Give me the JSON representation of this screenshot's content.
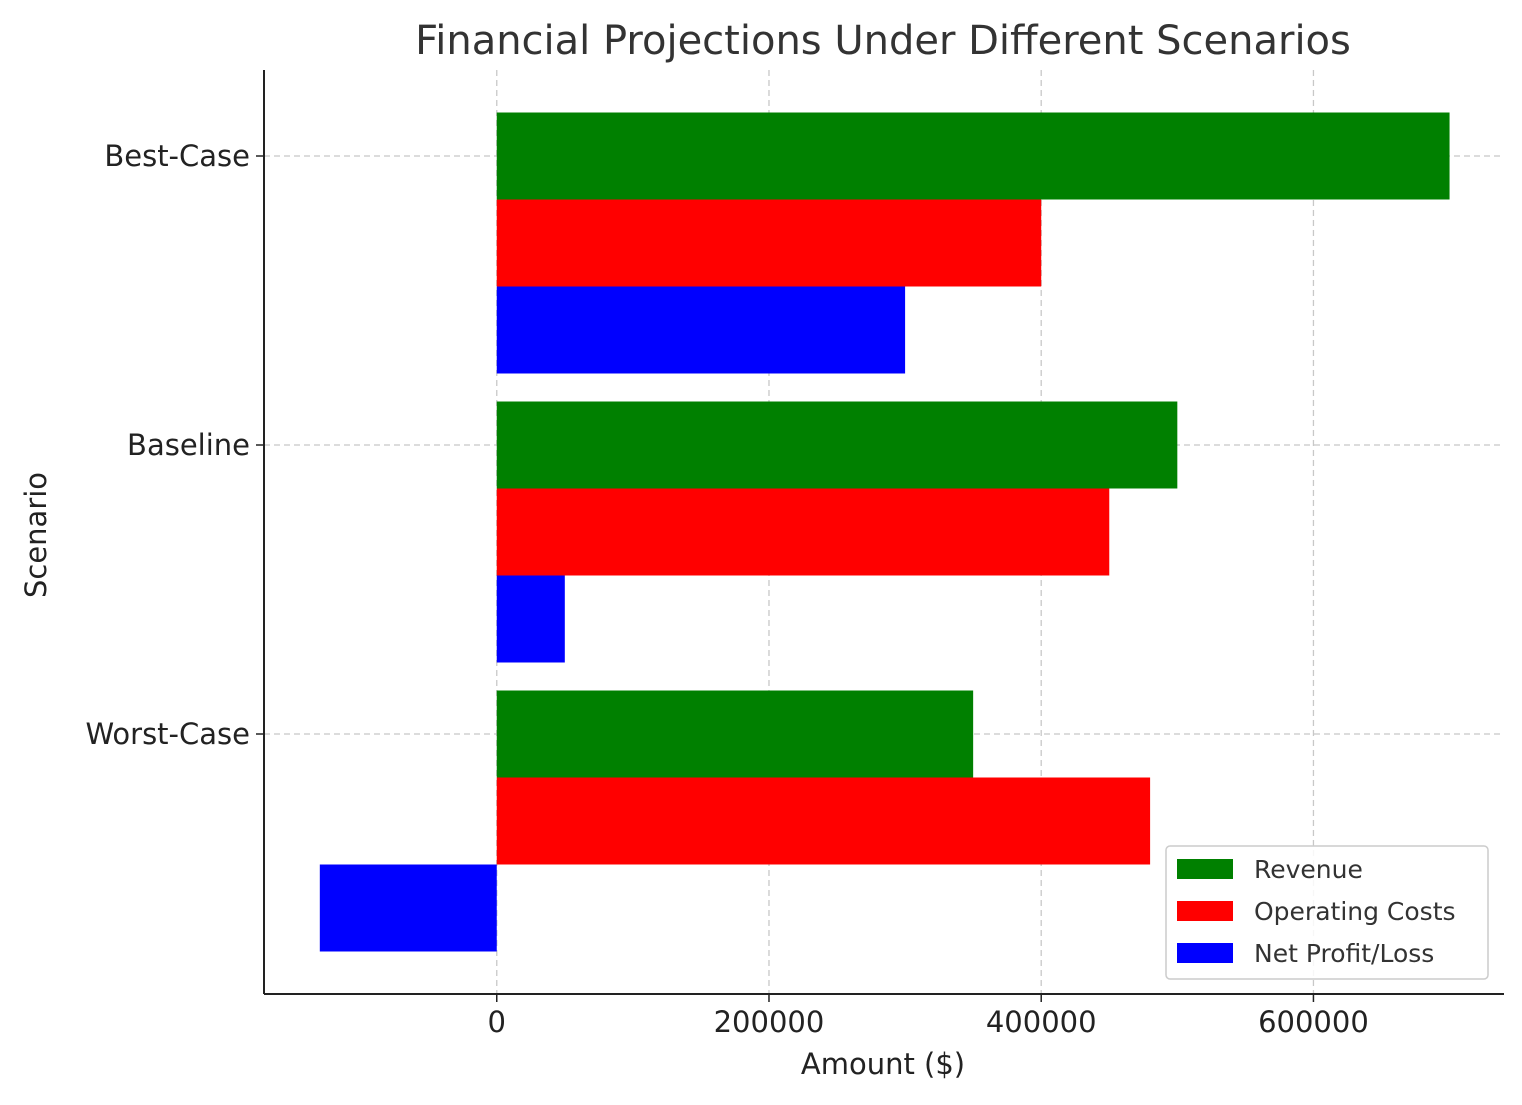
{
  "chart_data": {
    "type": "bar",
    "orientation": "horizontal",
    "title": "Financial Projections Under Different Scenarios",
    "xlabel": "Amount ($)",
    "ylabel": "Scenario",
    "categories": [
      "Best-Case",
      "Baseline",
      "Worst-Case"
    ],
    "series": [
      {
        "name": "Revenue",
        "color": "#008000",
        "values": [
          700000,
          500000,
          350000
        ]
      },
      {
        "name": "Operating Costs",
        "color": "#ff0000",
        "values": [
          400000,
          450000,
          480000
        ]
      },
      {
        "name": "Net Profit/Loss",
        "color": "#0000ff",
        "values": [
          300000,
          50000,
          -130000
        ]
      }
    ],
    "xlim": [
      -171000,
      740000
    ],
    "xticks": [
      0,
      200000,
      400000,
      600000
    ],
    "xtick_labels": [
      "0",
      "200000",
      "400000",
      "600000"
    ],
    "grid": true,
    "legend_position": "bottom-right"
  }
}
